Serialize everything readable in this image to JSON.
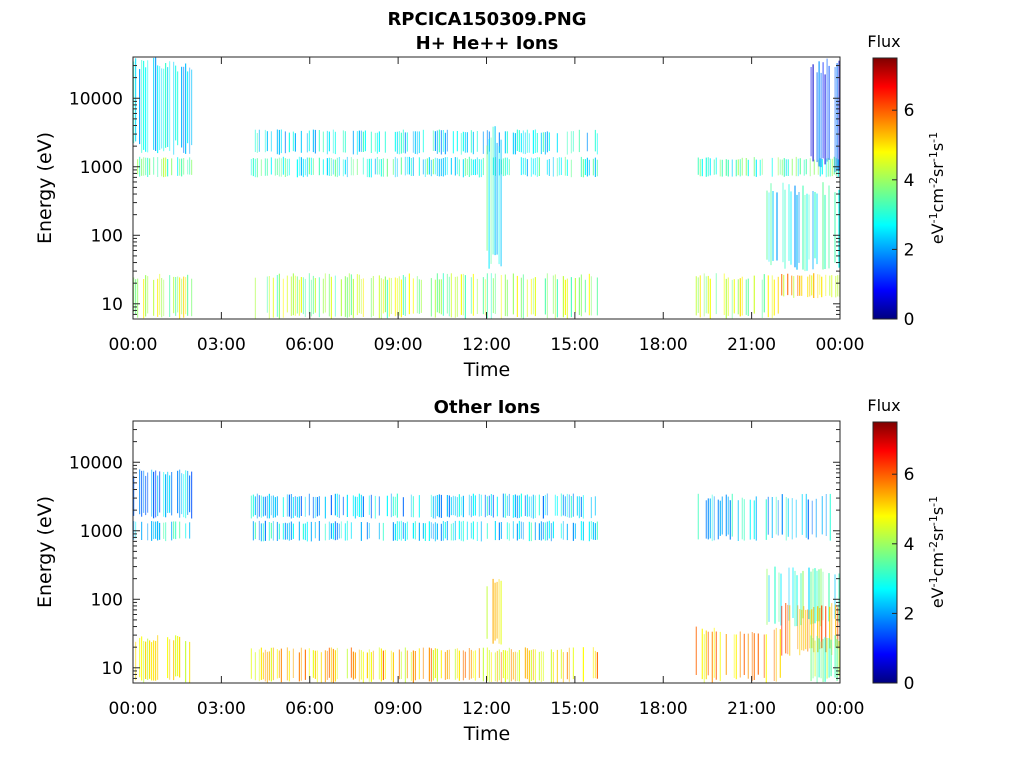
{
  "figure_title": "RPCICA150309.PNG",
  "colors": {
    "axis": "#262626",
    "background": "#ffffff",
    "colormap": "jet"
  },
  "chart_data": [
    {
      "type": "heatmap",
      "title": "H+ He++ Ions",
      "xlabel": "Time",
      "ylabel": "Energy (eV)",
      "x_ticks": [
        "00:00",
        "03:00",
        "06:00",
        "09:00",
        "12:00",
        "15:00",
        "18:00",
        "21:00",
        "00:00"
      ],
      "x_range_hours": [
        0,
        24
      ],
      "y_scale": "log",
      "y_ticks": [
        10,
        100,
        1000,
        10000
      ],
      "y_tick_labels": [
        "10",
        "100",
        "1000",
        "10000"
      ],
      "ylim": [
        6,
        40000
      ],
      "colorbar": {
        "title": "Flux",
        "label": "eV-1cm-2sr-1s-1",
        "ticks": [
          "0",
          "2",
          "4",
          "6"
        ],
        "range": [
          0,
          7.5
        ]
      },
      "data_gaps_hours": [
        [
          2.0,
          4.0
        ],
        [
          15.8,
          19.1
        ]
      ],
      "regions": [
        {
          "t": [
            0.0,
            2.0
          ],
          "e": [
            6,
            28
          ],
          "flux": 4.2
        },
        {
          "t": [
            0.0,
            2.0
          ],
          "e": [
            700,
            1400
          ],
          "flux": 3.5
        },
        {
          "t": [
            0.0,
            2.0
          ],
          "e": [
            1500,
            40000
          ],
          "flux": 2.5
        },
        {
          "t": [
            4.0,
            15.8
          ],
          "e": [
            6,
            28
          ],
          "flux": 4.0
        },
        {
          "t": [
            4.0,
            15.8
          ],
          "e": [
            700,
            1400
          ],
          "flux": 3.0
        },
        {
          "t": [
            4.0,
            15.8
          ],
          "e": [
            1500,
            3500
          ],
          "flux": 2.6
        },
        {
          "t": [
            12.0,
            12.6
          ],
          "e": [
            30,
            4000
          ],
          "flux": 3.0
        },
        {
          "t": [
            19.1,
            22.0
          ],
          "e": [
            6,
            28
          ],
          "flux": 4.2
        },
        {
          "t": [
            19.1,
            24.0
          ],
          "e": [
            700,
            1400
          ],
          "flux": 3.3
        },
        {
          "t": [
            21.5,
            24.0
          ],
          "e": [
            30,
            600
          ],
          "flux": 2.8
        },
        {
          "t": [
            22.0,
            24.0
          ],
          "e": [
            12,
            28
          ],
          "flux": 5.0
        },
        {
          "t": [
            23.0,
            24.0
          ],
          "e": [
            800,
            40000
          ],
          "flux": 1.2
        }
      ]
    },
    {
      "type": "heatmap",
      "title": "Other Ions",
      "xlabel": "Time",
      "ylabel": "Energy (eV)",
      "x_ticks": [
        "00:00",
        "03:00",
        "06:00",
        "09:00",
        "12:00",
        "15:00",
        "18:00",
        "21:00",
        "00:00"
      ],
      "x_range_hours": [
        0,
        24
      ],
      "y_scale": "log",
      "y_ticks": [
        10,
        100,
        1000,
        10000
      ],
      "y_tick_labels": [
        "10",
        "100",
        "1000",
        "10000"
      ],
      "ylim": [
        6,
        40000
      ],
      "colorbar": {
        "title": "Flux",
        "label": "eV-1cm-2sr-1s-1",
        "ticks": [
          "0",
          "2",
          "4",
          "6"
        ],
        "range": [
          0,
          7.5
        ]
      },
      "data_gaps_hours": [
        [
          2.0,
          4.0
        ],
        [
          15.8,
          19.1
        ]
      ],
      "regions": [
        {
          "t": [
            0.0,
            2.0
          ],
          "e": [
            6,
            30
          ],
          "flux": 5.0
        },
        {
          "t": [
            0.0,
            2.0
          ],
          "e": [
            700,
            1400
          ],
          "flux": 2.8
        },
        {
          "t": [
            0.0,
            2.0
          ],
          "e": [
            1500,
            8000
          ],
          "flux": 2.2
        },
        {
          "t": [
            4.0,
            15.8
          ],
          "e": [
            6,
            20
          ],
          "flux": 5.0
        },
        {
          "t": [
            4.0,
            15.8
          ],
          "e": [
            700,
            1400
          ],
          "flux": 2.6
        },
        {
          "t": [
            4.0,
            15.8
          ],
          "e": [
            1500,
            3500
          ],
          "flux": 2.4
        },
        {
          "t": [
            12.0,
            12.6
          ],
          "e": [
            20,
            200
          ],
          "flux": 4.5
        },
        {
          "t": [
            19.1,
            22.0
          ],
          "e": [
            6,
            40
          ],
          "flux": 5.2
        },
        {
          "t": [
            19.1,
            24.0
          ],
          "e": [
            700,
            3500
          ],
          "flux": 2.5
        },
        {
          "t": [
            21.5,
            24.0
          ],
          "e": [
            40,
            300
          ],
          "flux": 3.2
        },
        {
          "t": [
            22.0,
            24.0
          ],
          "e": [
            15,
            90
          ],
          "flux": 5.6
        },
        {
          "t": [
            23.0,
            24.0
          ],
          "e": [
            6,
            30
          ],
          "flux": 3.6
        }
      ]
    }
  ]
}
